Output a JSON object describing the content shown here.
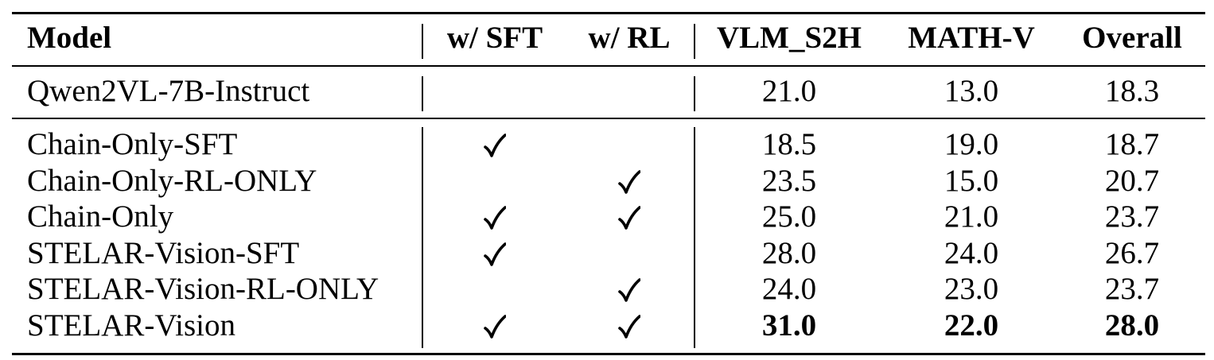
{
  "table": {
    "headers": {
      "model": "Model",
      "sft": "w/ SFT",
      "rl": "w/ RL",
      "vlm_s2h": "VLM_S2H",
      "math_v": "MATH-V",
      "overall": "Overall"
    },
    "baseline": {
      "model": "Qwen2VL-7B-Instruct",
      "sft": false,
      "rl": false,
      "vlm_s2h": "21.0",
      "math_v": "13.0",
      "overall": "18.3"
    },
    "rows": [
      {
        "model": "Chain-Only-SFT",
        "sft": true,
        "rl": false,
        "vlm_s2h": "18.5",
        "math_v": "19.0",
        "overall": "18.7",
        "bold": false
      },
      {
        "model": "Chain-Only-RL-ONLY",
        "sft": false,
        "rl": true,
        "vlm_s2h": "23.5",
        "math_v": "15.0",
        "overall": "20.7",
        "bold": false
      },
      {
        "model": "Chain-Only",
        "sft": true,
        "rl": true,
        "vlm_s2h": "25.0",
        "math_v": "21.0",
        "overall": "23.7",
        "bold": false
      },
      {
        "model": "STELAR-Vision-SFT",
        "sft": true,
        "rl": false,
        "vlm_s2h": "28.0",
        "math_v": "24.0",
        "overall": "26.7",
        "bold": false
      },
      {
        "model": "STELAR-Vision-RL-ONLY",
        "sft": false,
        "rl": true,
        "vlm_s2h": "24.0",
        "math_v": "23.0",
        "overall": "23.7",
        "bold": false
      },
      {
        "model": "STELAR-Vision",
        "sft": true,
        "rl": true,
        "vlm_s2h": "31.0",
        "math_v": "22.0",
        "overall": "28.0",
        "bold": true
      }
    ]
  }
}
